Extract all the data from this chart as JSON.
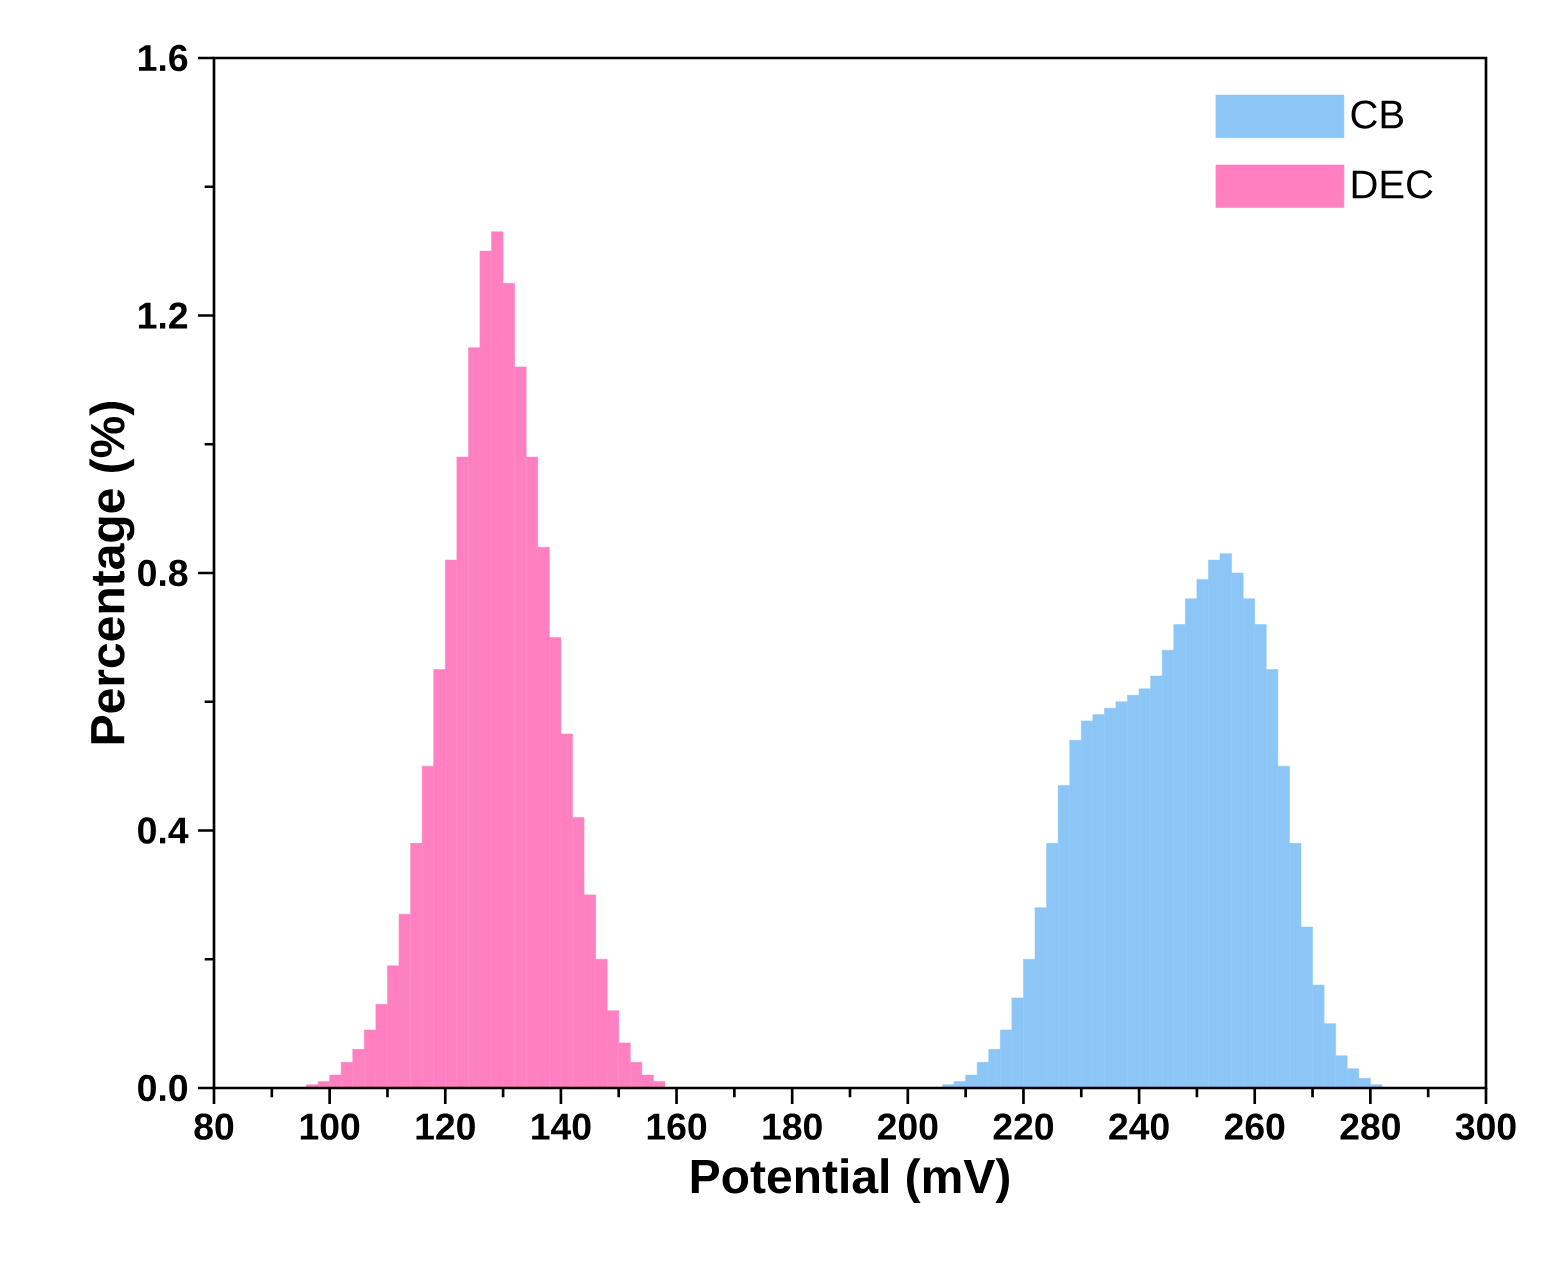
{
  "chart_data": {
    "type": "histogram",
    "xlabel": "Potential (mV)",
    "ylabel": "Percentage (%)",
    "bins": [
      96,
      98,
      100,
      102,
      104,
      106,
      108,
      110,
      112,
      114,
      116,
      118,
      120,
      122,
      124,
      126,
      128,
      130,
      132,
      134,
      136,
      138,
      140,
      142,
      144,
      146,
      148,
      150,
      152,
      154,
      156,
      158,
      160,
      162,
      164,
      166,
      168,
      170,
      172,
      174,
      176,
      178,
      180,
      182,
      184,
      186,
      188,
      190,
      192,
      194,
      196,
      198,
      200,
      202,
      204,
      206,
      208,
      210,
      212,
      214,
      216,
      218,
      220,
      222,
      224,
      226,
      228,
      230,
      232,
      234,
      236,
      238,
      240,
      242,
      244,
      246,
      248,
      250,
      252,
      254,
      256,
      258,
      260,
      262,
      264,
      266,
      268,
      270,
      272,
      274,
      276,
      278,
      280,
      282
    ],
    "series": [
      {
        "name": "CB",
        "color": "#8cc6f7",
        "values": [
          null,
          null,
          null,
          null,
          null,
          null,
          null,
          null,
          null,
          null,
          null,
          null,
          null,
          null,
          null,
          null,
          null,
          null,
          null,
          null,
          null,
          null,
          null,
          null,
          null,
          null,
          null,
          null,
          null,
          null,
          null,
          null,
          null,
          null,
          null,
          null,
          null,
          null,
          null,
          null,
          null,
          null,
          null,
          null,
          null,
          null,
          null,
          null,
          null,
          null,
          null,
          null,
          null,
          null,
          null,
          0.005,
          0.01,
          0.02,
          0.04,
          0.06,
          0.09,
          0.14,
          0.2,
          0.28,
          0.38,
          0.47,
          0.54,
          0.57,
          0.58,
          0.59,
          0.6,
          0.61,
          0.62,
          0.64,
          0.68,
          0.72,
          0.76,
          0.79,
          0.82,
          0.83,
          0.8,
          0.76,
          0.72,
          0.65,
          0.5,
          0.38,
          0.25,
          0.16,
          0.1,
          0.05,
          0.03,
          0.015,
          0.005
        ]
      },
      {
        "name": "DEC",
        "color": "#ff80c0",
        "values": [
          0.005,
          0.01,
          0.02,
          0.04,
          0.06,
          0.09,
          0.13,
          0.19,
          0.27,
          0.38,
          0.5,
          0.65,
          0.82,
          0.98,
          1.15,
          1.3,
          1.33,
          1.25,
          1.12,
          0.98,
          0.84,
          0.7,
          0.55,
          0.42,
          0.3,
          0.2,
          0.12,
          0.07,
          0.04,
          0.02,
          0.01,
          null,
          null,
          null,
          null,
          null,
          null,
          null,
          null,
          null,
          null,
          null,
          null,
          null,
          null,
          null,
          null,
          null,
          null,
          null,
          null,
          null,
          null,
          null,
          null,
          null,
          null,
          null,
          null,
          null,
          null,
          null,
          null,
          null,
          null,
          null,
          null,
          null,
          null,
          null,
          null,
          null,
          null,
          null,
          null,
          null,
          null,
          null,
          null,
          null,
          null,
          null,
          null,
          null,
          null,
          null,
          null,
          null,
          null,
          null,
          null,
          null,
          null
        ]
      }
    ],
    "xlim": [
      80,
      300
    ],
    "xticks": [
      80,
      100,
      120,
      140,
      160,
      180,
      200,
      220,
      240,
      260,
      280,
      300
    ],
    "ylim": [
      0,
      1.6
    ],
    "yticks": [
      {
        "value": 0,
        "label": "0.0"
      },
      0.4,
      0.8,
      1.2,
      1.6
    ],
    "legend": "top right"
  }
}
